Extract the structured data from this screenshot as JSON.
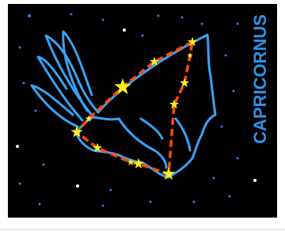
{
  "title": "CAPRICORNUS"
}
